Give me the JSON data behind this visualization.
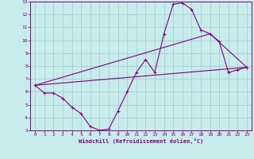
{
  "xlabel": "Windchill (Refroidissement éolien,°C)",
  "bg_color": "#c8ecec",
  "line_color": "#800080",
  "grid_color": "#a0c8c8",
  "xlim": [
    -0.5,
    23.5
  ],
  "ylim": [
    3,
    13
  ],
  "yticks": [
    3,
    4,
    5,
    6,
    7,
    8,
    9,
    10,
    11,
    12,
    13
  ],
  "xticks": [
    0,
    1,
    2,
    3,
    4,
    5,
    6,
    7,
    8,
    9,
    10,
    11,
    12,
    13,
    14,
    15,
    16,
    17,
    18,
    19,
    20,
    21,
    22,
    23
  ],
  "line1_x": [
    0,
    1,
    2,
    3,
    4,
    5,
    6,
    7,
    8,
    9,
    10,
    11,
    12,
    13,
    14,
    15,
    16,
    17,
    18,
    19,
    20,
    21,
    22,
    23
  ],
  "line1_y": [
    6.5,
    5.9,
    5.9,
    5.5,
    4.8,
    4.3,
    3.3,
    3.0,
    3.1,
    4.5,
    6.0,
    7.5,
    8.5,
    7.5,
    10.5,
    12.8,
    12.9,
    12.4,
    10.8,
    10.5,
    9.9,
    7.5,
    7.7,
    7.9
  ],
  "line2_x": [
    0,
    23
  ],
  "line2_y": [
    6.5,
    7.9
  ],
  "line3_x": [
    0,
    19,
    23
  ],
  "line3_y": [
    6.5,
    10.5,
    7.9
  ]
}
